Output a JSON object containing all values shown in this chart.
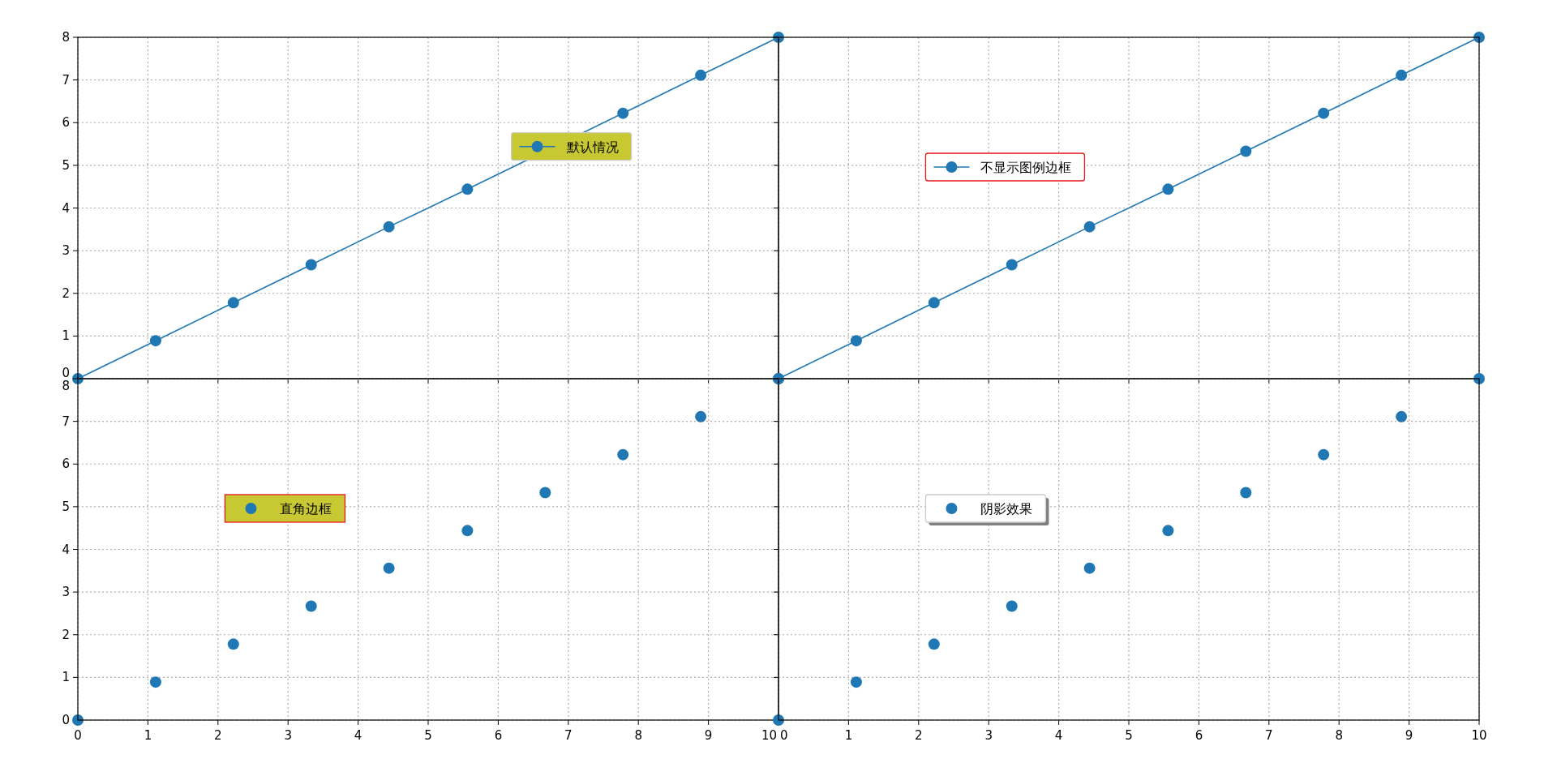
{
  "chart_data": [
    {
      "type": "line",
      "x": [
        0,
        1.11,
        2.22,
        3.33,
        4.44,
        5.56,
        6.67,
        7.78,
        8.89,
        10
      ],
      "series": [
        {
          "name": "默认情况",
          "color": "#1f77b4",
          "values": [
            0,
            0.89,
            1.78,
            2.67,
            3.56,
            4.44,
            5.33,
            6.22,
            7.11,
            8
          ]
        }
      ],
      "xlim": [
        0,
        10
      ],
      "ylim": [
        0,
        8
      ],
      "xticks": [
        0,
        1,
        2,
        3,
        4,
        5,
        6,
        7,
        8,
        9,
        10
      ],
      "yticks": [
        0,
        1,
        2,
        3,
        4,
        5,
        6,
        7,
        8
      ],
      "grid": true,
      "legend": "center right",
      "marker": "circle",
      "line_style": "solid",
      "tick_labels": "y"
    },
    {
      "type": "line",
      "x": [
        0,
        1.11,
        2.22,
        3.33,
        4.44,
        5.56,
        6.67,
        7.78,
        8.89,
        10
      ],
      "series": [
        {
          "name": "不显示图例边框",
          "color": "#1f77b4",
          "values": [
            0,
            0.89,
            1.78,
            2.67,
            3.56,
            4.44,
            5.33,
            6.22,
            7.11,
            8
          ]
        }
      ],
      "xlim": [
        0,
        10
      ],
      "ylim": [
        0,
        8
      ],
      "xticks": [
        0,
        1,
        2,
        3,
        4,
        5,
        6,
        7,
        8,
        9,
        10
      ],
      "yticks": [
        0,
        1,
        2,
        3,
        4,
        5,
        6,
        7,
        8
      ],
      "grid": true,
      "legend": "center left",
      "marker": "circle",
      "line_style": "solid",
      "tick_labels": false
    },
    {
      "type": "scatter",
      "x": [
        0,
        1.11,
        2.22,
        3.33,
        4.44,
        5.56,
        6.67,
        7.78,
        8.89,
        10
      ],
      "series": [
        {
          "name": "直角边框",
          "color": "#1f77b4",
          "values": [
            0,
            0.89,
            1.78,
            2.67,
            3.56,
            4.44,
            5.33,
            6.22,
            7.11,
            8
          ]
        }
      ],
      "xlim": [
        0,
        10
      ],
      "ylim": [
        0,
        8
      ],
      "xticks": [
        0,
        1,
        2,
        3,
        4,
        5,
        6,
        7,
        8,
        9,
        10
      ],
      "yticks": [
        0,
        1,
        2,
        3,
        4,
        5,
        6,
        7,
        8
      ],
      "grid": true,
      "legend": "center left",
      "marker": "circle"
    },
    {
      "type": "scatter",
      "x": [
        0,
        1.11,
        2.22,
        3.33,
        4.44,
        5.56,
        6.67,
        7.78,
        8.89,
        10
      ],
      "series": [
        {
          "name": "阴影效果",
          "color": "#1f77b4",
          "values": [
            0,
            0.89,
            1.78,
            2.67,
            3.56,
            4.44,
            5.33,
            6.22,
            7.11,
            8
          ]
        }
      ],
      "xlim": [
        0,
        10
      ],
      "ylim": [
        0,
        8
      ],
      "xticks": [
        0,
        1,
        2,
        3,
        4,
        5,
        6,
        7,
        8,
        9,
        10
      ],
      "yticks": [
        0,
        1,
        2,
        3,
        4,
        5,
        6,
        7,
        8
      ],
      "grid": true,
      "legend": "center left",
      "marker": "circle",
      "tick_labels": "x"
    }
  ]
}
